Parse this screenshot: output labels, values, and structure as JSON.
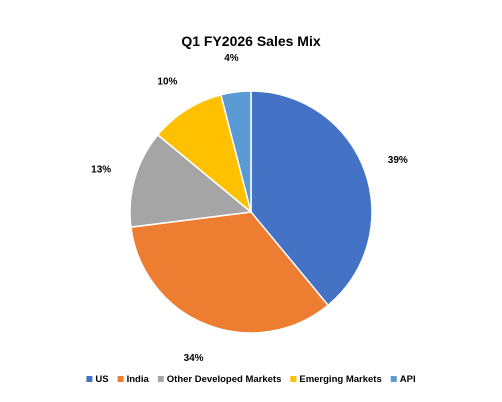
{
  "chart_data": {
    "type": "pie",
    "title": "Q1 FY2026 Sales Mix",
    "labels": [
      "US",
      "India",
      "Other Developed Markets",
      "Emerging Markets",
      "API"
    ],
    "values": [
      39,
      34,
      13,
      10,
      4
    ],
    "value_labels": [
      "39%",
      "34%",
      "13%",
      "10%",
      "4%"
    ],
    "colors": [
      "#4472C4",
      "#ED7D31",
      "#A5A5A5",
      "#FFC000",
      "#5B9BD5"
    ],
    "legend_position": "bottom",
    "start_angle_deg": 0,
    "direction": "clockwise"
  }
}
